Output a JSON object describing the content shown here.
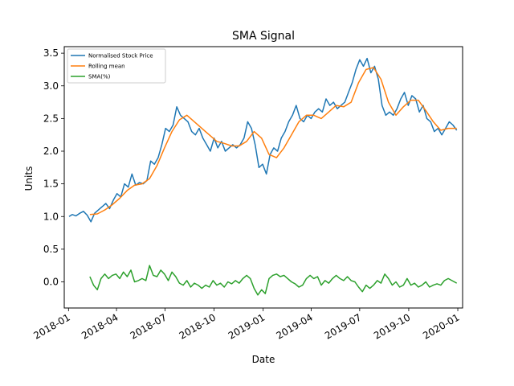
{
  "chart_data": {
    "type": "line",
    "title": "SMA Signal",
    "xlabel": "Date",
    "ylabel": "Units",
    "xlim": [
      "2017-12-24",
      "2020-01-10"
    ],
    "ylim": [
      -0.4,
      3.6
    ],
    "x_ticks": [
      {
        "date": "2018-01-01",
        "label": "2018-01"
      },
      {
        "date": "2018-04-01",
        "label": "2018-04"
      },
      {
        "date": "2018-07-01",
        "label": "2018-07"
      },
      {
        "date": "2018-10-01",
        "label": "2018-10"
      },
      {
        "date": "2019-01-01",
        "label": "2019-01"
      },
      {
        "date": "2019-04-01",
        "label": "2019-04"
      },
      {
        "date": "2019-07-01",
        "label": "2019-07"
      },
      {
        "date": "2019-10-01",
        "label": "2019-10"
      },
      {
        "date": "2020-01-01",
        "label": "2020-01"
      }
    ],
    "y_ticks": [
      {
        "value": 0.0,
        "label": "0.0"
      },
      {
        "value": 0.5,
        "label": "0.5"
      },
      {
        "value": 1.0,
        "label": "1.0"
      },
      {
        "value": 1.5,
        "label": "1.5"
      },
      {
        "value": 2.0,
        "label": "2.0"
      },
      {
        "value": 2.5,
        "label": "2.5"
      },
      {
        "value": 3.0,
        "label": "3.0"
      },
      {
        "value": 3.5,
        "label": "3.5"
      }
    ],
    "grid": false,
    "legend_position": "top-left",
    "series": [
      {
        "name": "Normalised Stock Price",
        "color": "#1f77b4",
        "points": [
          [
            "2018-01-02",
            1.0
          ],
          [
            "2018-01-08",
            1.03
          ],
          [
            "2018-01-15",
            1.01
          ],
          [
            "2018-01-22",
            1.05
          ],
          [
            "2018-01-29",
            1.08
          ],
          [
            "2018-02-05",
            1.02
          ],
          [
            "2018-02-12",
            0.92
          ],
          [
            "2018-02-19",
            1.05
          ],
          [
            "2018-02-26",
            1.1
          ],
          [
            "2018-03-05",
            1.15
          ],
          [
            "2018-03-12",
            1.2
          ],
          [
            "2018-03-19",
            1.12
          ],
          [
            "2018-03-26",
            1.25
          ],
          [
            "2018-04-02",
            1.35
          ],
          [
            "2018-04-09",
            1.3
          ],
          [
            "2018-04-16",
            1.5
          ],
          [
            "2018-04-23",
            1.45
          ],
          [
            "2018-04-30",
            1.65
          ],
          [
            "2018-05-07",
            1.48
          ],
          [
            "2018-05-14",
            1.52
          ],
          [
            "2018-05-21",
            1.5
          ],
          [
            "2018-05-28",
            1.55
          ],
          [
            "2018-06-04",
            1.85
          ],
          [
            "2018-06-11",
            1.8
          ],
          [
            "2018-06-18",
            1.9
          ],
          [
            "2018-06-25",
            2.1
          ],
          [
            "2018-07-02",
            2.35
          ],
          [
            "2018-07-09",
            2.3
          ],
          [
            "2018-07-16",
            2.4
          ],
          [
            "2018-07-23",
            2.68
          ],
          [
            "2018-07-30",
            2.55
          ],
          [
            "2018-08-06",
            2.5
          ],
          [
            "2018-08-13",
            2.45
          ],
          [
            "2018-08-20",
            2.3
          ],
          [
            "2018-08-27",
            2.25
          ],
          [
            "2018-09-03",
            2.35
          ],
          [
            "2018-09-10",
            2.2
          ],
          [
            "2018-09-17",
            2.1
          ],
          [
            "2018-09-24",
            2.0
          ],
          [
            "2018-10-01",
            2.2
          ],
          [
            "2018-10-08",
            2.05
          ],
          [
            "2018-10-15",
            2.15
          ],
          [
            "2018-10-22",
            2.0
          ],
          [
            "2018-10-29",
            2.05
          ],
          [
            "2018-11-05",
            2.1
          ],
          [
            "2018-11-12",
            2.05
          ],
          [
            "2018-11-19",
            2.1
          ],
          [
            "2018-11-26",
            2.2
          ],
          [
            "2018-12-03",
            2.45
          ],
          [
            "2018-12-10",
            2.35
          ],
          [
            "2018-12-17",
            2.1
          ],
          [
            "2018-12-24",
            1.75
          ],
          [
            "2018-12-31",
            1.8
          ],
          [
            "2019-01-07",
            1.65
          ],
          [
            "2019-01-14",
            1.95
          ],
          [
            "2019-01-21",
            2.05
          ],
          [
            "2019-01-28",
            2.0
          ],
          [
            "2019-02-04",
            2.2
          ],
          [
            "2019-02-11",
            2.3
          ],
          [
            "2019-02-18",
            2.45
          ],
          [
            "2019-02-25",
            2.55
          ],
          [
            "2019-03-04",
            2.7
          ],
          [
            "2019-03-11",
            2.5
          ],
          [
            "2019-03-18",
            2.45
          ],
          [
            "2019-03-25",
            2.55
          ],
          [
            "2019-04-01",
            2.5
          ],
          [
            "2019-04-08",
            2.6
          ],
          [
            "2019-04-15",
            2.65
          ],
          [
            "2019-04-22",
            2.6
          ],
          [
            "2019-04-29",
            2.8
          ],
          [
            "2019-05-06",
            2.7
          ],
          [
            "2019-05-13",
            2.75
          ],
          [
            "2019-05-20",
            2.65
          ],
          [
            "2019-05-27",
            2.7
          ],
          [
            "2019-06-03",
            2.75
          ],
          [
            "2019-06-10",
            2.9
          ],
          [
            "2019-06-17",
            3.05
          ],
          [
            "2019-06-24",
            3.25
          ],
          [
            "2019-07-01",
            3.4
          ],
          [
            "2019-07-08",
            3.3
          ],
          [
            "2019-07-15",
            3.42
          ],
          [
            "2019-07-22",
            3.2
          ],
          [
            "2019-07-29",
            3.3
          ],
          [
            "2019-08-05",
            3.1
          ],
          [
            "2019-08-12",
            2.7
          ],
          [
            "2019-08-19",
            2.55
          ],
          [
            "2019-08-26",
            2.6
          ],
          [
            "2019-09-02",
            2.55
          ],
          [
            "2019-09-09",
            2.65
          ],
          [
            "2019-09-16",
            2.8
          ],
          [
            "2019-09-23",
            2.9
          ],
          [
            "2019-09-30",
            2.7
          ],
          [
            "2019-10-07",
            2.85
          ],
          [
            "2019-10-14",
            2.8
          ],
          [
            "2019-10-21",
            2.6
          ],
          [
            "2019-10-28",
            2.7
          ],
          [
            "2019-11-04",
            2.5
          ],
          [
            "2019-11-11",
            2.45
          ],
          [
            "2019-11-18",
            2.3
          ],
          [
            "2019-11-25",
            2.35
          ],
          [
            "2019-12-02",
            2.25
          ],
          [
            "2019-12-09",
            2.35
          ],
          [
            "2019-12-16",
            2.45
          ],
          [
            "2019-12-23",
            2.4
          ],
          [
            "2019-12-30",
            2.32
          ]
        ]
      },
      {
        "name": "Rolling mean",
        "color": "#ff7f0e",
        "points": [
          [
            "2018-02-10",
            1.03
          ],
          [
            "2018-02-24",
            1.04
          ],
          [
            "2018-03-10",
            1.1
          ],
          [
            "2018-03-24",
            1.18
          ],
          [
            "2018-04-07",
            1.28
          ],
          [
            "2018-04-21",
            1.4
          ],
          [
            "2018-05-05",
            1.48
          ],
          [
            "2018-05-19",
            1.5
          ],
          [
            "2018-06-02",
            1.58
          ],
          [
            "2018-06-16",
            1.78
          ],
          [
            "2018-06-30",
            2.05
          ],
          [
            "2018-07-14",
            2.3
          ],
          [
            "2018-07-28",
            2.48
          ],
          [
            "2018-08-11",
            2.55
          ],
          [
            "2018-08-25",
            2.45
          ],
          [
            "2018-09-08",
            2.35
          ],
          [
            "2018-09-22",
            2.25
          ],
          [
            "2018-10-06",
            2.15
          ],
          [
            "2018-10-20",
            2.12
          ],
          [
            "2018-11-03",
            2.08
          ],
          [
            "2018-11-17",
            2.08
          ],
          [
            "2018-12-01",
            2.15
          ],
          [
            "2018-12-15",
            2.3
          ],
          [
            "2018-12-29",
            2.2
          ],
          [
            "2019-01-12",
            1.95
          ],
          [
            "2019-01-26",
            1.9
          ],
          [
            "2019-02-09",
            2.05
          ],
          [
            "2019-02-23",
            2.25
          ],
          [
            "2019-03-09",
            2.45
          ],
          [
            "2019-03-23",
            2.55
          ],
          [
            "2019-04-06",
            2.55
          ],
          [
            "2019-04-20",
            2.5
          ],
          [
            "2019-05-04",
            2.6
          ],
          [
            "2019-05-18",
            2.7
          ],
          [
            "2019-06-01",
            2.68
          ],
          [
            "2019-06-15",
            2.75
          ],
          [
            "2019-06-29",
            3.05
          ],
          [
            "2019-07-13",
            3.25
          ],
          [
            "2019-07-27",
            3.28
          ],
          [
            "2019-08-10",
            3.1
          ],
          [
            "2019-08-24",
            2.75
          ],
          [
            "2019-09-07",
            2.55
          ],
          [
            "2019-09-21",
            2.68
          ],
          [
            "2019-10-05",
            2.78
          ],
          [
            "2019-10-19",
            2.78
          ],
          [
            "2019-11-02",
            2.62
          ],
          [
            "2019-11-16",
            2.45
          ],
          [
            "2019-11-30",
            2.32
          ],
          [
            "2019-12-14",
            2.35
          ],
          [
            "2019-12-30",
            2.35
          ]
        ]
      },
      {
        "name": "SMA(%)",
        "color": "#2ca02c",
        "points": [
          [
            "2018-02-10",
            0.08
          ],
          [
            "2018-02-17",
            -0.05
          ],
          [
            "2018-02-24",
            -0.12
          ],
          [
            "2018-03-03",
            0.05
          ],
          [
            "2018-03-10",
            0.12
          ],
          [
            "2018-03-17",
            0.05
          ],
          [
            "2018-03-24",
            0.1
          ],
          [
            "2018-03-31",
            0.12
          ],
          [
            "2018-04-07",
            0.05
          ],
          [
            "2018-04-14",
            0.15
          ],
          [
            "2018-04-21",
            0.08
          ],
          [
            "2018-04-28",
            0.18
          ],
          [
            "2018-05-05",
            0.0
          ],
          [
            "2018-05-12",
            0.02
          ],
          [
            "2018-05-19",
            0.05
          ],
          [
            "2018-05-26",
            0.02
          ],
          [
            "2018-06-02",
            0.25
          ],
          [
            "2018-06-09",
            0.1
          ],
          [
            "2018-06-16",
            0.08
          ],
          [
            "2018-06-23",
            0.18
          ],
          [
            "2018-06-30",
            0.12
          ],
          [
            "2018-07-07",
            0.02
          ],
          [
            "2018-07-14",
            0.15
          ],
          [
            "2018-07-21",
            0.08
          ],
          [
            "2018-07-28",
            -0.02
          ],
          [
            "2018-08-04",
            -0.05
          ],
          [
            "2018-08-11",
            0.02
          ],
          [
            "2018-08-18",
            -0.08
          ],
          [
            "2018-08-25",
            -0.02
          ],
          [
            "2018-09-01",
            -0.05
          ],
          [
            "2018-09-08",
            -0.1
          ],
          [
            "2018-09-15",
            -0.05
          ],
          [
            "2018-09-22",
            -0.08
          ],
          [
            "2018-09-29",
            0.02
          ],
          [
            "2018-10-06",
            -0.05
          ],
          [
            "2018-10-13",
            -0.02
          ],
          [
            "2018-10-20",
            -0.08
          ],
          [
            "2018-10-27",
            0.0
          ],
          [
            "2018-11-03",
            -0.03
          ],
          [
            "2018-11-10",
            0.02
          ],
          [
            "2018-11-17",
            -0.02
          ],
          [
            "2018-11-24",
            0.05
          ],
          [
            "2018-12-01",
            0.1
          ],
          [
            "2018-12-08",
            0.05
          ],
          [
            "2018-12-15",
            -0.1
          ],
          [
            "2018-12-22",
            -0.2
          ],
          [
            "2018-12-29",
            -0.12
          ],
          [
            "2019-01-05",
            -0.18
          ],
          [
            "2019-01-12",
            0.05
          ],
          [
            "2019-01-19",
            0.1
          ],
          [
            "2019-01-26",
            0.12
          ],
          [
            "2019-02-02",
            0.08
          ],
          [
            "2019-02-09",
            0.1
          ],
          [
            "2019-02-16",
            0.05
          ],
          [
            "2019-02-23",
            0.0
          ],
          [
            "2019-03-02",
            -0.03
          ],
          [
            "2019-03-09",
            -0.08
          ],
          [
            "2019-03-16",
            -0.05
          ],
          [
            "2019-03-23",
            0.05
          ],
          [
            "2019-03-30",
            0.1
          ],
          [
            "2019-04-06",
            0.05
          ],
          [
            "2019-04-13",
            0.08
          ],
          [
            "2019-04-20",
            -0.05
          ],
          [
            "2019-04-27",
            0.02
          ],
          [
            "2019-05-04",
            -0.02
          ],
          [
            "2019-05-11",
            0.05
          ],
          [
            "2019-05-18",
            0.1
          ],
          [
            "2019-05-25",
            0.05
          ],
          [
            "2019-06-01",
            0.02
          ],
          [
            "2019-06-08",
            0.08
          ],
          [
            "2019-06-15",
            0.02
          ],
          [
            "2019-06-22",
            0.0
          ],
          [
            "2019-06-29",
            -0.08
          ],
          [
            "2019-07-06",
            -0.15
          ],
          [
            "2019-07-13",
            -0.05
          ],
          [
            "2019-07-20",
            -0.1
          ],
          [
            "2019-07-27",
            -0.05
          ],
          [
            "2019-08-03",
            0.02
          ],
          [
            "2019-08-10",
            -0.02
          ],
          [
            "2019-08-17",
            0.12
          ],
          [
            "2019-08-24",
            0.05
          ],
          [
            "2019-08-31",
            -0.05
          ],
          [
            "2019-09-07",
            0.0
          ],
          [
            "2019-09-14",
            -0.08
          ],
          [
            "2019-09-21",
            -0.05
          ],
          [
            "2019-09-28",
            0.05
          ],
          [
            "2019-10-05",
            -0.05
          ],
          [
            "2019-10-12",
            -0.02
          ],
          [
            "2019-10-19",
            -0.08
          ],
          [
            "2019-10-26",
            -0.05
          ],
          [
            "2019-11-02",
            0.0
          ],
          [
            "2019-11-09",
            -0.08
          ],
          [
            "2019-11-16",
            -0.05
          ],
          [
            "2019-11-23",
            -0.03
          ],
          [
            "2019-11-30",
            -0.05
          ],
          [
            "2019-12-07",
            0.02
          ],
          [
            "2019-12-14",
            0.05
          ],
          [
            "2019-12-21",
            0.02
          ],
          [
            "2019-12-30",
            -0.02
          ]
        ]
      }
    ]
  }
}
